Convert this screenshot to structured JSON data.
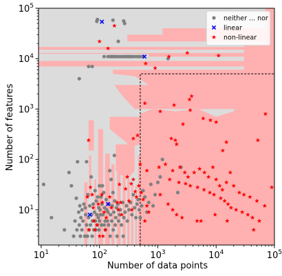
{
  "chart_data": {
    "type": "scatter",
    "title": "",
    "xlabel": "Number of data points",
    "ylabel": "Number of features",
    "xscale": "log",
    "yscale": "log",
    "xlim": [
      9,
      100000
    ],
    "ylim": [
      2,
      100000
    ],
    "x_ticks": [
      {
        "value": 10,
        "base": "10",
        "exp": "1"
      },
      {
        "value": 100,
        "base": "10",
        "exp": "2"
      },
      {
        "value": 1000,
        "base": "10",
        "exp": "3"
      },
      {
        "value": 10000,
        "base": "10",
        "exp": "4"
      },
      {
        "value": 100000,
        "base": "10",
        "exp": "5"
      }
    ],
    "y_ticks": [
      {
        "value": 10,
        "base": "10",
        "exp": "1"
      },
      {
        "value": 100,
        "base": "10",
        "exp": "2"
      },
      {
        "value": 1000,
        "base": "10",
        "exp": "3"
      },
      {
        "value": 10000,
        "base": "10",
        "exp": "4"
      },
      {
        "value": 100000,
        "base": "10",
        "exp": "5"
      }
    ],
    "legend_position": "top-right",
    "background": {
      "grey_region_color": "#dcdcdc",
      "pink_region_color": "#ffb0b0"
    },
    "threshold_box": {
      "x_min": 500,
      "y_min": 2,
      "x_max": 100000,
      "y_max": 5000,
      "style": "dashed"
    },
    "series": [
      {
        "name": "neither ... nor",
        "marker": "circle",
        "color": "#808080",
        "points": [
          [
            11,
            32
          ],
          [
            15,
            7
          ],
          [
            25,
            4
          ],
          [
            30,
            55
          ],
          [
            33,
            30
          ],
          [
            36,
            3
          ],
          [
            38,
            6
          ],
          [
            40,
            17
          ],
          [
            41,
            4
          ],
          [
            42,
            90
          ],
          [
            44,
            9
          ],
          [
            45,
            5
          ],
          [
            46,
            12
          ],
          [
            47,
            3
          ],
          [
            48,
            7
          ],
          [
            50,
            10
          ],
          [
            50,
            4
          ],
          [
            52,
            6
          ],
          [
            54,
            13
          ],
          [
            56,
            3
          ],
          [
            57,
            11
          ],
          [
            58,
            8
          ],
          [
            60,
            5
          ],
          [
            60,
            90
          ],
          [
            62,
            3
          ],
          [
            63,
            20
          ],
          [
            65,
            7
          ],
          [
            66,
            4
          ],
          [
            68,
            12
          ],
          [
            70,
            5
          ],
          [
            72,
            45
          ],
          [
            73,
            8
          ],
          [
            75,
            3
          ],
          [
            76,
            6
          ],
          [
            78,
            13
          ],
          [
            80,
            4
          ],
          [
            82,
            9
          ],
          [
            84,
            24
          ],
          [
            85,
            6
          ],
          [
            86,
            4
          ],
          [
            88,
            15
          ],
          [
            90,
            8
          ],
          [
            92,
            5
          ],
          [
            93,
            18
          ],
          [
            95,
            7
          ],
          [
            97,
            11
          ],
          [
            98,
            4
          ],
          [
            100,
            6
          ],
          [
            100,
            30
          ],
          [
            102,
            10
          ],
          [
            104,
            8
          ],
          [
            106,
            18
          ],
          [
            108,
            5
          ],
          [
            110,
            13
          ],
          [
            112,
            30
          ],
          [
            115,
            8
          ],
          [
            118,
            22
          ],
          [
            120,
            5
          ],
          [
            122,
            11
          ],
          [
            125,
            6
          ],
          [
            127,
            4
          ],
          [
            130,
            16
          ],
          [
            133,
            10
          ],
          [
            136,
            6
          ],
          [
            140,
            9
          ],
          [
            143,
            5
          ],
          [
            146,
            13
          ],
          [
            150,
            60
          ],
          [
            152,
            3
          ],
          [
            155,
            8
          ],
          [
            158,
            40
          ],
          [
            162,
            6
          ],
          [
            165,
            12
          ],
          [
            170,
            22
          ],
          [
            172,
            4
          ],
          [
            176,
            9
          ],
          [
            180,
            120
          ],
          [
            182,
            15
          ],
          [
            186,
            5
          ],
          [
            190,
            7
          ],
          [
            195,
            11
          ],
          [
            200,
            3
          ],
          [
            205,
            13
          ],
          [
            212,
            6
          ],
          [
            220,
            8
          ],
          [
            228,
            10
          ],
          [
            238,
            5
          ],
          [
            250,
            14
          ],
          [
            255,
            3
          ],
          [
            262,
            7
          ],
          [
            275,
            9
          ],
          [
            290,
            12
          ],
          [
            300,
            6
          ],
          [
            320,
            10
          ],
          [
            340,
            14
          ],
          [
            360,
            8
          ],
          [
            380,
            20
          ],
          [
            400,
            11
          ],
          [
            420,
            7
          ],
          [
            440,
            13
          ],
          [
            460,
            16
          ],
          [
            480,
            10
          ],
          [
            500,
            7
          ],
          [
            530,
            12
          ],
          [
            560,
            24
          ],
          [
            600,
            18
          ],
          [
            650,
            9
          ],
          [
            700,
            14
          ],
          [
            760,
            32
          ],
          [
            830,
            12
          ],
          [
            900,
            20
          ],
          [
            1000,
            35
          ],
          [
            1100,
            45
          ],
          [
            1200,
            100
          ],
          [
            2500,
            70
          ],
          [
            2200,
            22
          ],
          [
            90,
            55000
          ],
          [
            92,
            60000
          ],
          [
            170,
            58000
          ],
          [
            260,
            56000
          ],
          [
            210,
            22000
          ],
          [
            45,
            4000
          ],
          [
            65,
            7000
          ],
          [
            75,
            7000
          ],
          [
            120,
            11000
          ],
          [
            140,
            11000
          ],
          [
            155,
            11000
          ],
          [
            165,
            11000
          ],
          [
            175,
            11000
          ],
          [
            185,
            11000
          ],
          [
            200,
            11000
          ],
          [
            220,
            11000
          ],
          [
            240,
            11000
          ],
          [
            260,
            11000
          ],
          [
            280,
            11000
          ],
          [
            300,
            11000
          ],
          [
            320,
            11000
          ],
          [
            340,
            11000
          ],
          [
            360,
            11000
          ],
          [
            380,
            11000
          ],
          [
            420,
            11000
          ],
          [
            460,
            11000
          ],
          [
            500,
            11000
          ],
          [
            560,
            11000
          ],
          [
            1500,
            10000
          ],
          [
            270,
            50000
          ]
        ]
      },
      {
        "name": "linear",
        "marker": "x",
        "color": "#0000ff",
        "points": [
          [
            110,
            54000
          ],
          [
            590,
            11000
          ],
          [
            140,
            13
          ],
          [
            68,
            8
          ]
        ]
      },
      {
        "name": "non-linear",
        "marker": "star",
        "color": "#ff0000",
        "points": [
          [
            180,
            45000
          ],
          [
            100,
            22000
          ],
          [
            140,
            16000
          ],
          [
            3200,
            13000
          ],
          [
            11000,
            11500
          ],
          [
            620,
            8000
          ],
          [
            900,
            6500
          ],
          [
            1550,
            11000
          ],
          [
            3800,
            1800
          ],
          [
            3500,
            1550
          ],
          [
            1900,
            1200
          ],
          [
            3600,
            950
          ],
          [
            600,
            1300
          ],
          [
            1100,
            900
          ],
          [
            6000,
            650
          ],
          [
            8000,
            600
          ],
          [
            2700,
            500
          ],
          [
            10000,
            550
          ],
          [
            70000,
            800
          ],
          [
            15000,
            220
          ],
          [
            52000,
            240
          ],
          [
            13000,
            150
          ],
          [
            2000,
            240
          ],
          [
            2100,
            200
          ],
          [
            1700,
            260
          ],
          [
            450,
            300
          ],
          [
            380,
            260
          ],
          [
            65,
            240
          ],
          [
            500,
            80
          ],
          [
            650,
            60
          ],
          [
            1050,
            70
          ],
          [
            1350,
            80
          ],
          [
            1800,
            60
          ],
          [
            2400,
            70
          ],
          [
            2900,
            55
          ],
          [
            3300,
            45
          ],
          [
            4200,
            55
          ],
          [
            5200,
            65
          ],
          [
            6300,
            55
          ],
          [
            7400,
            45
          ],
          [
            8800,
            70
          ],
          [
            10000,
            40
          ],
          [
            11500,
            30
          ],
          [
            12800,
            25
          ],
          [
            15000,
            35
          ],
          [
            17500,
            55
          ],
          [
            20000,
            30
          ],
          [
            25000,
            22
          ],
          [
            30000,
            20
          ],
          [
            38000,
            18
          ],
          [
            50000,
            15
          ],
          [
            68000,
            12
          ],
          [
            90000,
            28
          ],
          [
            1600,
            40
          ],
          [
            2300,
            35
          ],
          [
            3000,
            33
          ],
          [
            3600,
            30
          ],
          [
            4800,
            28
          ],
          [
            6200,
            25
          ],
          [
            7800,
            22
          ],
          [
            9200,
            20
          ],
          [
            12000,
            17
          ],
          [
            14000,
            15
          ],
          [
            16000,
            13
          ],
          [
            18000,
            11
          ],
          [
            22000,
            10
          ],
          [
            28000,
            9
          ],
          [
            35000,
            8
          ],
          [
            42000,
            7
          ],
          [
            55000,
            6
          ],
          [
            1100,
            20
          ],
          [
            1500,
            13
          ],
          [
            1800,
            10
          ],
          [
            2100,
            8
          ],
          [
            2600,
            7
          ],
          [
            4700,
            6
          ],
          [
            5500,
            6
          ],
          [
            9600,
            8
          ],
          [
            15500,
            6
          ],
          [
            44000,
            4
          ],
          [
            150,
            18
          ],
          [
            160,
            11
          ],
          [
            200,
            14
          ],
          [
            210,
            10
          ],
          [
            220,
            32
          ],
          [
            230,
            14
          ],
          [
            240,
            8
          ],
          [
            280,
            26
          ],
          [
            300,
            45
          ],
          [
            320,
            15
          ],
          [
            350,
            33
          ],
          [
            360,
            10
          ],
          [
            380,
            40
          ],
          [
            410,
            23
          ],
          [
            430,
            18
          ],
          [
            470,
            30
          ],
          [
            520,
            22
          ],
          [
            560,
            16
          ],
          [
            600,
            6
          ],
          [
            650,
            12
          ],
          [
            700,
            9
          ],
          [
            120,
            9
          ],
          [
            125,
            4
          ],
          [
            130,
            7
          ],
          [
            90,
            5
          ],
          [
            95,
            13
          ],
          [
            100,
            3
          ],
          [
            70,
            28
          ],
          [
            75,
            20
          ],
          [
            78,
            11
          ],
          [
            80,
            6
          ],
          [
            84,
            4
          ],
          [
            110,
            20
          ],
          [
            112,
            14
          ],
          [
            115,
            3
          ],
          [
            62,
            18
          ],
          [
            66,
            4
          ]
        ]
      }
    ]
  }
}
